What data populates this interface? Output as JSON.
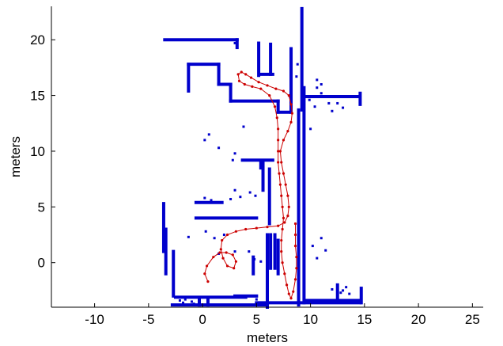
{
  "chart_data": {
    "type": "scatter",
    "title": "",
    "xlabel": "meters",
    "ylabel": "meters",
    "xlim": [
      -14,
      26
    ],
    "ylim": [
      -4,
      23
    ],
    "xticks": [
      -10,
      -5,
      0,
      5,
      10,
      15,
      20,
      25
    ],
    "yticks": [
      0,
      5,
      10,
      15,
      20
    ],
    "grid": false,
    "series": [
      {
        "kind": "map",
        "color": "#0000cc",
        "description_points": "occupancy polylines in meters",
        "polylines": [
          [
            [
              -3.5,
              20.0
            ],
            [
              3.2,
              20.0
            ]
          ],
          [
            [
              3.2,
              20.0
            ],
            [
              3.2,
              19.3
            ]
          ],
          [
            [
              5.2,
              19.7
            ],
            [
              5.2,
              16.8
            ]
          ],
          [
            [
              5.3,
              16.9
            ],
            [
              6.5,
              16.9
            ]
          ],
          [
            [
              6.3,
              19.6
            ],
            [
              6.3,
              16.9
            ]
          ],
          [
            [
              -1.3,
              17.8
            ],
            [
              1.5,
              17.8
            ]
          ],
          [
            [
              1.5,
              17.8
            ],
            [
              1.5,
              16.0
            ]
          ],
          [
            [
              1.5,
              16.0
            ],
            [
              2.6,
              16.0
            ]
          ],
          [
            [
              2.6,
              16.0
            ],
            [
              2.6,
              14.5
            ]
          ],
          [
            [
              2.6,
              14.5
            ],
            [
              7.0,
              14.5
            ]
          ],
          [
            [
              -1.3,
              17.8
            ],
            [
              -1.3,
              15.4
            ]
          ],
          [
            [
              7.0,
              14.5
            ],
            [
              7.0,
              13.5
            ]
          ],
          [
            [
              7.0,
              13.5
            ],
            [
              8.2,
              13.5
            ]
          ],
          [
            [
              8.2,
              19.2
            ],
            [
              8.2,
              13.5
            ]
          ],
          [
            [
              9.2,
              22.8
            ],
            [
              9.2,
              13.7
            ]
          ],
          [
            [
              8.9,
              13.7
            ],
            [
              8.9,
              -3.8
            ]
          ],
          [
            [
              9.4,
              15.7
            ],
            [
              9.4,
              -3.6
            ]
          ],
          [
            [
              9.5,
              14.9
            ],
            [
              14.5,
              14.9
            ]
          ],
          [
            [
              14.6,
              15.2
            ],
            [
              14.6,
              14.2
            ]
          ],
          [
            [
              3.7,
              9.2
            ],
            [
              6.5,
              9.2
            ]
          ],
          [
            [
              5.4,
              9.0
            ],
            [
              5.4,
              8.5
            ]
          ],
          [
            [
              5.6,
              9.0
            ],
            [
              5.6,
              6.5
            ]
          ],
          [
            [
              6.2,
              8.4
            ],
            [
              6.2,
              3.5
            ]
          ],
          [
            [
              -0.6,
              4.0
            ],
            [
              5.0,
              4.0
            ]
          ],
          [
            [
              -0.6,
              5.4
            ],
            [
              1.8,
              5.4
            ]
          ],
          [
            [
              -3.6,
              5.3
            ],
            [
              -3.6,
              1.0
            ]
          ],
          [
            [
              -3.4,
              3.0
            ],
            [
              -3.4,
              -1.0
            ]
          ],
          [
            [
              -2.7,
              1.0
            ],
            [
              -2.7,
              -3.0
            ]
          ],
          [
            [
              6.0,
              2.5
            ],
            [
              6.0,
              -4.0
            ]
          ],
          [
            [
              6.3,
              2.5
            ],
            [
              6.3,
              -0.5
            ]
          ],
          [
            [
              6.7,
              2.5
            ],
            [
              6.7,
              -0.5
            ]
          ],
          [
            [
              7.0,
              2.0
            ],
            [
              7.0,
              -1.0
            ]
          ],
          [
            [
              4.7,
              0.5
            ],
            [
              4.7,
              -1.0
            ]
          ],
          [
            [
              -2.5,
              -3.1
            ],
            [
              4.0,
              -3.1
            ]
          ],
          [
            [
              3.0,
              -3.0
            ],
            [
              5.0,
              -3.0
            ]
          ],
          [
            [
              5.0,
              -3.6
            ],
            [
              14.6,
              -3.6
            ]
          ],
          [
            [
              -2.8,
              -3.8
            ],
            [
              6.0,
              -3.8
            ]
          ],
          [
            [
              9.5,
              -3.4
            ],
            [
              14.6,
              -3.4
            ]
          ],
          [
            [
              14.7,
              -2.3
            ],
            [
              14.7,
              -3.6
            ]
          ],
          [
            [
              12.5,
              -2.0
            ],
            [
              12.5,
              -3.5
            ]
          ],
          [
            [
              -0.3,
              -3.3
            ],
            [
              -0.3,
              -3.8
            ]
          ],
          [
            [
              0.5,
              -3.3
            ],
            [
              0.5,
              -3.8
            ]
          ]
        ],
        "points": [
          [
            0.6,
            11.5
          ],
          [
            0.2,
            11.0
          ],
          [
            1.5,
            10.3
          ],
          [
            2.8,
            9.2
          ],
          [
            3.0,
            9.8
          ],
          [
            3.8,
            12.2
          ],
          [
            0.2,
            5.8
          ],
          [
            0.8,
            5.6
          ],
          [
            2.6,
            5.7
          ],
          [
            3.5,
            5.9
          ],
          [
            4.4,
            6.3
          ],
          [
            4.9,
            6.0
          ],
          [
            3.0,
            6.5
          ],
          [
            1.5,
            0.8
          ],
          [
            3.0,
            1.0
          ],
          [
            4.3,
            1.0
          ],
          [
            4.8,
            0.3
          ],
          [
            5.4,
            0.1
          ],
          [
            10.2,
            1.5
          ],
          [
            11.0,
            2.2
          ],
          [
            11.4,
            1.1
          ],
          [
            10.6,
            0.4
          ],
          [
            11.7,
            14.3
          ],
          [
            12.5,
            14.3
          ],
          [
            13.0,
            13.9
          ],
          [
            12.0,
            13.6
          ],
          [
            10.4,
            14.0
          ],
          [
            10.6,
            15.7
          ],
          [
            11.0,
            16.0
          ],
          [
            11.0,
            15.2
          ],
          [
            10.6,
            16.4
          ],
          [
            8.7,
            16.7
          ],
          [
            8.8,
            17.8
          ],
          [
            9.9,
            14.6
          ],
          [
            10.0,
            12.0
          ],
          [
            13.0,
            -2.5
          ],
          [
            13.3,
            -2.2
          ],
          [
            12.0,
            -2.4
          ],
          [
            12.8,
            -2.7
          ],
          [
            13.6,
            -2.8
          ],
          [
            -1.0,
            -3.5
          ],
          [
            -1.6,
            -3.3
          ],
          [
            -1.8,
            -3.6
          ],
          [
            -2.1,
            -3.4
          ],
          [
            -0.8,
            -3.7
          ],
          [
            0.3,
            2.8
          ],
          [
            1.1,
            2.2
          ],
          [
            2.0,
            2.5
          ],
          [
            -1.3,
            2.3
          ],
          [
            5.0,
            -3.3
          ],
          [
            3.2,
            19.4
          ],
          [
            3.0,
            19.7
          ]
        ]
      },
      {
        "kind": "trajectory",
        "color": "#cc0000",
        "points": [
          [
            0.5,
            -1.7
          ],
          [
            0.2,
            -1.0
          ],
          [
            0.4,
            -0.3
          ],
          [
            1.0,
            0.5
          ],
          [
            1.6,
            0.9
          ],
          [
            2.2,
            0.9
          ],
          [
            2.8,
            0.7
          ],
          [
            3.1,
            0.1
          ],
          [
            2.9,
            -0.5
          ],
          [
            2.3,
            -0.3
          ],
          [
            1.9,
            0.4
          ],
          [
            1.7,
            1.2
          ],
          [
            1.8,
            2.0
          ],
          [
            2.3,
            2.5
          ],
          [
            3.1,
            2.8
          ],
          [
            4.0,
            3.0
          ],
          [
            5.0,
            3.1
          ],
          [
            6.0,
            3.2
          ],
          [
            7.0,
            3.3
          ],
          [
            7.6,
            3.6
          ],
          [
            7.9,
            4.2
          ],
          [
            8.0,
            5.0
          ],
          [
            7.9,
            6.0
          ],
          [
            7.7,
            7.0
          ],
          [
            7.5,
            8.0
          ],
          [
            7.3,
            9.0
          ],
          [
            7.2,
            10.0
          ],
          [
            7.5,
            11.0
          ],
          [
            7.9,
            11.8
          ],
          [
            8.2,
            12.6
          ],
          [
            8.3,
            13.4
          ],
          [
            8.2,
            14.2
          ],
          [
            8.0,
            15.0
          ],
          [
            7.5,
            15.4
          ],
          [
            6.8,
            15.6
          ],
          [
            6.0,
            15.9
          ],
          [
            5.2,
            16.2
          ],
          [
            4.5,
            16.6
          ],
          [
            4.0,
            16.9
          ],
          [
            3.6,
            17.1
          ],
          [
            3.3,
            16.9
          ],
          [
            3.4,
            16.3
          ],
          [
            3.9,
            16.0
          ],
          [
            4.6,
            15.8
          ],
          [
            5.4,
            15.6
          ],
          [
            6.2,
            15.0
          ],
          [
            6.7,
            14.0
          ],
          [
            6.9,
            13.0
          ],
          [
            7.0,
            12.0
          ],
          [
            7.0,
            11.0
          ],
          [
            7.0,
            10.0
          ],
          [
            7.0,
            9.0
          ],
          [
            7.1,
            8.0
          ],
          [
            7.2,
            7.0
          ],
          [
            7.3,
            6.0
          ],
          [
            7.4,
            5.0
          ],
          [
            7.5,
            4.0
          ],
          [
            7.4,
            3.0
          ],
          [
            7.3,
            2.0
          ],
          [
            7.3,
            1.0
          ],
          [
            7.4,
            0.0
          ],
          [
            7.6,
            -1.0
          ],
          [
            7.8,
            -2.0
          ],
          [
            8.0,
            -2.8
          ],
          [
            8.2,
            -3.2
          ],
          [
            8.4,
            -2.6
          ],
          [
            8.6,
            -1.5
          ],
          [
            8.7,
            -0.5
          ],
          [
            8.7,
            0.5
          ],
          [
            8.6,
            1.5
          ],
          [
            8.6,
            2.5
          ],
          [
            8.6,
            3.5
          ]
        ]
      }
    ]
  }
}
